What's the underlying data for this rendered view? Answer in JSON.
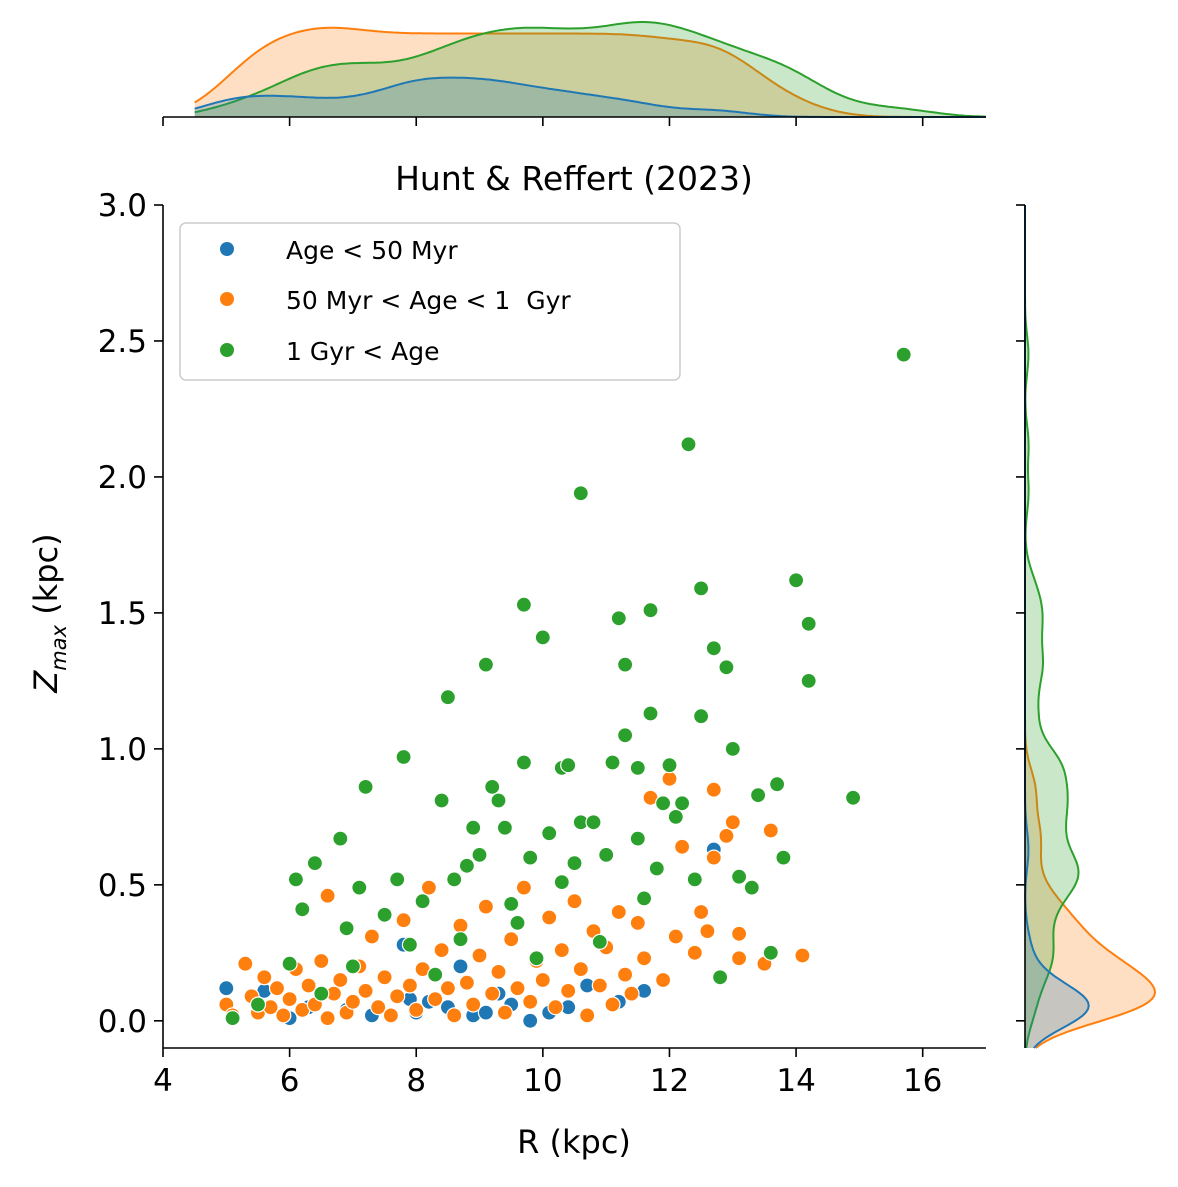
{
  "chart_data": {
    "type": "scatter",
    "title": "Hunt & Reffert (2023)",
    "xlabel": "R (kpc)",
    "ylabel": "Z",
    "ylabel_subscript": "max",
    "ylabel_suffix": " (kpc)",
    "xlim": [
      4,
      17
    ],
    "ylim": [
      -0.1,
      3.0
    ],
    "xticks": [
      "4",
      "6",
      "8",
      "10",
      "12",
      "14",
      "16"
    ],
    "yticks": [
      "0.0",
      "0.5",
      "1.0",
      "1.5",
      "2.0",
      "2.5",
      "3.0"
    ],
    "grid": false,
    "legend_position": "top-left",
    "marginals": "kde",
    "series": [
      {
        "name": "Age < 50 Myr",
        "color": "#1f77b4",
        "points": [
          [
            5.0,
            0.12
          ],
          [
            5.1,
            0.02
          ],
          [
            5.6,
            0.11
          ],
          [
            6.0,
            0.01
          ],
          [
            6.3,
            0.05
          ],
          [
            6.9,
            0.04
          ],
          [
            7.3,
            0.02
          ],
          [
            7.8,
            0.28
          ],
          [
            7.9,
            0.08
          ],
          [
            8.0,
            0.03
          ],
          [
            8.2,
            0.07
          ],
          [
            8.5,
            0.05
          ],
          [
            8.7,
            0.2
          ],
          [
            8.9,
            0.02
          ],
          [
            9.1,
            0.03
          ],
          [
            9.3,
            0.1
          ],
          [
            9.5,
            0.06
          ],
          [
            9.8,
            0.0
          ],
          [
            10.1,
            0.03
          ],
          [
            10.4,
            0.05
          ],
          [
            10.7,
            0.13
          ],
          [
            11.2,
            0.07
          ],
          [
            11.6,
            0.11
          ],
          [
            12.7,
            0.63
          ]
        ]
      },
      {
        "name": "50 Myr < Age < 1  Gyr",
        "color": "#ff7f0e",
        "points": [
          [
            5.0,
            0.06
          ],
          [
            5.1,
            0.02
          ],
          [
            5.3,
            0.21
          ],
          [
            5.4,
            0.09
          ],
          [
            5.5,
            0.03
          ],
          [
            5.6,
            0.16
          ],
          [
            5.7,
            0.05
          ],
          [
            5.8,
            0.12
          ],
          [
            5.9,
            0.02
          ],
          [
            6.0,
            0.08
          ],
          [
            6.1,
            0.19
          ],
          [
            6.2,
            0.04
          ],
          [
            6.3,
            0.13
          ],
          [
            6.4,
            0.06
          ],
          [
            6.5,
            0.22
          ],
          [
            6.6,
            0.01
          ],
          [
            6.6,
            0.46
          ],
          [
            6.7,
            0.1
          ],
          [
            6.8,
            0.15
          ],
          [
            6.9,
            0.03
          ],
          [
            7.0,
            0.07
          ],
          [
            7.1,
            0.2
          ],
          [
            7.2,
            0.11
          ],
          [
            7.3,
            0.31
          ],
          [
            7.4,
            0.05
          ],
          [
            7.5,
            0.16
          ],
          [
            7.6,
            0.02
          ],
          [
            7.7,
            0.09
          ],
          [
            7.8,
            0.37
          ],
          [
            7.9,
            0.13
          ],
          [
            8.0,
            0.04
          ],
          [
            8.1,
            0.19
          ],
          [
            8.2,
            0.49
          ],
          [
            8.3,
            0.08
          ],
          [
            8.4,
            0.26
          ],
          [
            8.5,
            0.12
          ],
          [
            8.6,
            0.02
          ],
          [
            8.7,
            0.35
          ],
          [
            8.8,
            0.14
          ],
          [
            8.9,
            0.06
          ],
          [
            9.0,
            0.24
          ],
          [
            9.1,
            0.42
          ],
          [
            9.2,
            0.1
          ],
          [
            9.3,
            0.18
          ],
          [
            9.4,
            0.03
          ],
          [
            9.5,
            0.3
          ],
          [
            9.6,
            0.12
          ],
          [
            9.7,
            0.49
          ],
          [
            9.8,
            0.07
          ],
          [
            9.9,
            0.22
          ],
          [
            10.0,
            0.15
          ],
          [
            10.1,
            0.38
          ],
          [
            10.2,
            0.05
          ],
          [
            10.3,
            0.26
          ],
          [
            10.4,
            0.11
          ],
          [
            10.5,
            0.44
          ],
          [
            10.6,
            0.19
          ],
          [
            10.7,
            0.02
          ],
          [
            10.8,
            0.33
          ],
          [
            10.9,
            0.13
          ],
          [
            11.0,
            0.27
          ],
          [
            11.1,
            0.06
          ],
          [
            11.2,
            0.4
          ],
          [
            11.3,
            0.17
          ],
          [
            11.4,
            0.1
          ],
          [
            11.5,
            0.36
          ],
          [
            11.6,
            0.23
          ],
          [
            11.7,
            0.82
          ],
          [
            11.8,
            0.56
          ],
          [
            11.9,
            0.15
          ],
          [
            12.0,
            0.89
          ],
          [
            12.1,
            0.31
          ],
          [
            12.2,
            0.64
          ],
          [
            12.4,
            0.25
          ],
          [
            12.5,
            0.4
          ],
          [
            12.6,
            0.33
          ],
          [
            12.7,
            0.6
          ],
          [
            12.7,
            0.85
          ],
          [
            12.9,
            0.68
          ],
          [
            13.0,
            0.73
          ],
          [
            13.1,
            0.32
          ],
          [
            13.1,
            0.23
          ],
          [
            13.6,
            0.7
          ],
          [
            13.5,
            0.21
          ],
          [
            14.1,
            0.24
          ]
        ]
      },
      {
        "name": "1 Gyr < Age",
        "color": "#2ca02c",
        "points": [
          [
            5.1,
            0.01
          ],
          [
            5.5,
            0.06
          ],
          [
            6.0,
            0.21
          ],
          [
            6.1,
            0.52
          ],
          [
            6.2,
            0.41
          ],
          [
            6.4,
            0.58
          ],
          [
            6.5,
            0.1
          ],
          [
            6.8,
            0.67
          ],
          [
            6.9,
            0.34
          ],
          [
            7.0,
            0.2
          ],
          [
            7.1,
            0.49
          ],
          [
            7.2,
            0.86
          ],
          [
            7.5,
            0.39
          ],
          [
            7.7,
            0.52
          ],
          [
            7.8,
            0.97
          ],
          [
            7.9,
            0.28
          ],
          [
            8.1,
            0.44
          ],
          [
            8.3,
            0.17
          ],
          [
            8.4,
            0.81
          ],
          [
            8.5,
            1.19
          ],
          [
            8.6,
            0.52
          ],
          [
            8.7,
            0.3
          ],
          [
            8.8,
            0.57
          ],
          [
            8.9,
            0.71
          ],
          [
            9.0,
            0.61
          ],
          [
            9.1,
            1.31
          ],
          [
            9.2,
            0.86
          ],
          [
            9.3,
            0.81
          ],
          [
            9.4,
            0.71
          ],
          [
            9.5,
            0.43
          ],
          [
            9.6,
            0.36
          ],
          [
            9.7,
            0.95
          ],
          [
            9.7,
            1.53
          ],
          [
            9.8,
            0.6
          ],
          [
            9.9,
            0.23
          ],
          [
            10.0,
            1.41
          ],
          [
            10.1,
            0.69
          ],
          [
            10.3,
            0.51
          ],
          [
            10.3,
            0.93
          ],
          [
            10.4,
            0.94
          ],
          [
            10.5,
            0.58
          ],
          [
            10.6,
            1.94
          ],
          [
            10.6,
            0.73
          ],
          [
            10.8,
            0.73
          ],
          [
            10.9,
            0.29
          ],
          [
            11.0,
            0.61
          ],
          [
            11.1,
            0.95
          ],
          [
            11.2,
            1.48
          ],
          [
            11.3,
            1.05
          ],
          [
            11.3,
            1.31
          ],
          [
            11.5,
            0.67
          ],
          [
            11.5,
            0.93
          ],
          [
            11.6,
            0.45
          ],
          [
            11.7,
            1.51
          ],
          [
            11.7,
            1.13
          ],
          [
            11.8,
            0.56
          ],
          [
            11.9,
            0.8
          ],
          [
            12.0,
            0.94
          ],
          [
            12.1,
            0.75
          ],
          [
            12.2,
            0.8
          ],
          [
            12.3,
            2.12
          ],
          [
            12.4,
            0.52
          ],
          [
            12.5,
            1.12
          ],
          [
            12.5,
            1.59
          ],
          [
            12.7,
            1.37
          ],
          [
            12.8,
            0.16
          ],
          [
            12.9,
            1.3
          ],
          [
            13.0,
            1.0
          ],
          [
            13.1,
            0.53
          ],
          [
            13.3,
            0.49
          ],
          [
            13.4,
            0.83
          ],
          [
            13.6,
            0.25
          ],
          [
            13.7,
            0.87
          ],
          [
            13.8,
            0.6
          ],
          [
            14.0,
            1.62
          ],
          [
            14.2,
            1.46
          ],
          [
            14.2,
            1.25
          ],
          [
            14.9,
            0.82
          ],
          [
            15.7,
            2.45
          ]
        ]
      }
    ]
  }
}
